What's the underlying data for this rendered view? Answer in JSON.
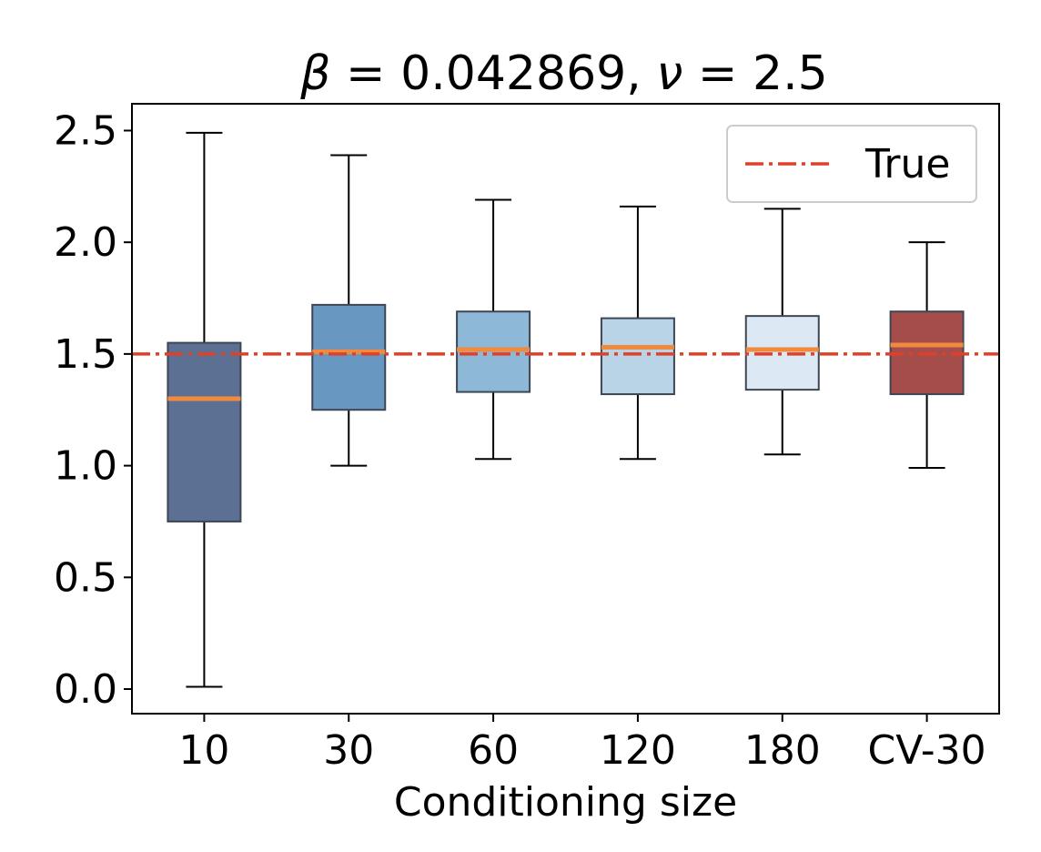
{
  "chart_data": {
    "type": "box",
    "title": "β = 0.042869, ν = 2.5",
    "title_parts": {
      "beta_symbol": "β",
      "beta_value": "0.042869",
      "nu_symbol": "ν",
      "nu_value": "2.5"
    },
    "xlabel": "Conditioning size",
    "ylabel": "",
    "categories": [
      "10",
      "30",
      "60",
      "120",
      "180",
      "CV-30"
    ],
    "ylim": [
      -0.11,
      2.62
    ],
    "yticks": [
      "0.0",
      "0.5",
      "1.0",
      "1.5",
      "2.0",
      "2.5"
    ],
    "grid": false,
    "legend": {
      "position": "top-right",
      "entries": [
        "True"
      ]
    },
    "reference_line": {
      "name": "True",
      "value": 1.5,
      "style": "dash-dot",
      "color": "#e0402a"
    },
    "median_color": "#f08a3c",
    "boxes": [
      {
        "category": "10",
        "whisker_low": 0.01,
        "q1": 0.75,
        "median": 1.3,
        "q3": 1.55,
        "whisker_high": 2.49,
        "color": "#5b7092"
      },
      {
        "category": "30",
        "whisker_low": 1.0,
        "q1": 1.25,
        "median": 1.51,
        "q3": 1.72,
        "whisker_high": 2.39,
        "color": "#6897c2"
      },
      {
        "category": "60",
        "whisker_low": 1.03,
        "q1": 1.33,
        "median": 1.52,
        "q3": 1.69,
        "whisker_high": 2.19,
        "color": "#8db8d8"
      },
      {
        "category": "120",
        "whisker_low": 1.03,
        "q1": 1.32,
        "median": 1.53,
        "q3": 1.66,
        "whisker_high": 2.16,
        "color": "#b8d4e6"
      },
      {
        "category": "180",
        "whisker_low": 1.05,
        "q1": 1.34,
        "median": 1.52,
        "q3": 1.67,
        "whisker_high": 2.15,
        "color": "#dce8f3"
      },
      {
        "category": "CV-30",
        "whisker_low": 0.99,
        "q1": 1.32,
        "median": 1.54,
        "q3": 1.69,
        "whisker_high": 2.0,
        "color": "#a54d4a"
      }
    ]
  }
}
